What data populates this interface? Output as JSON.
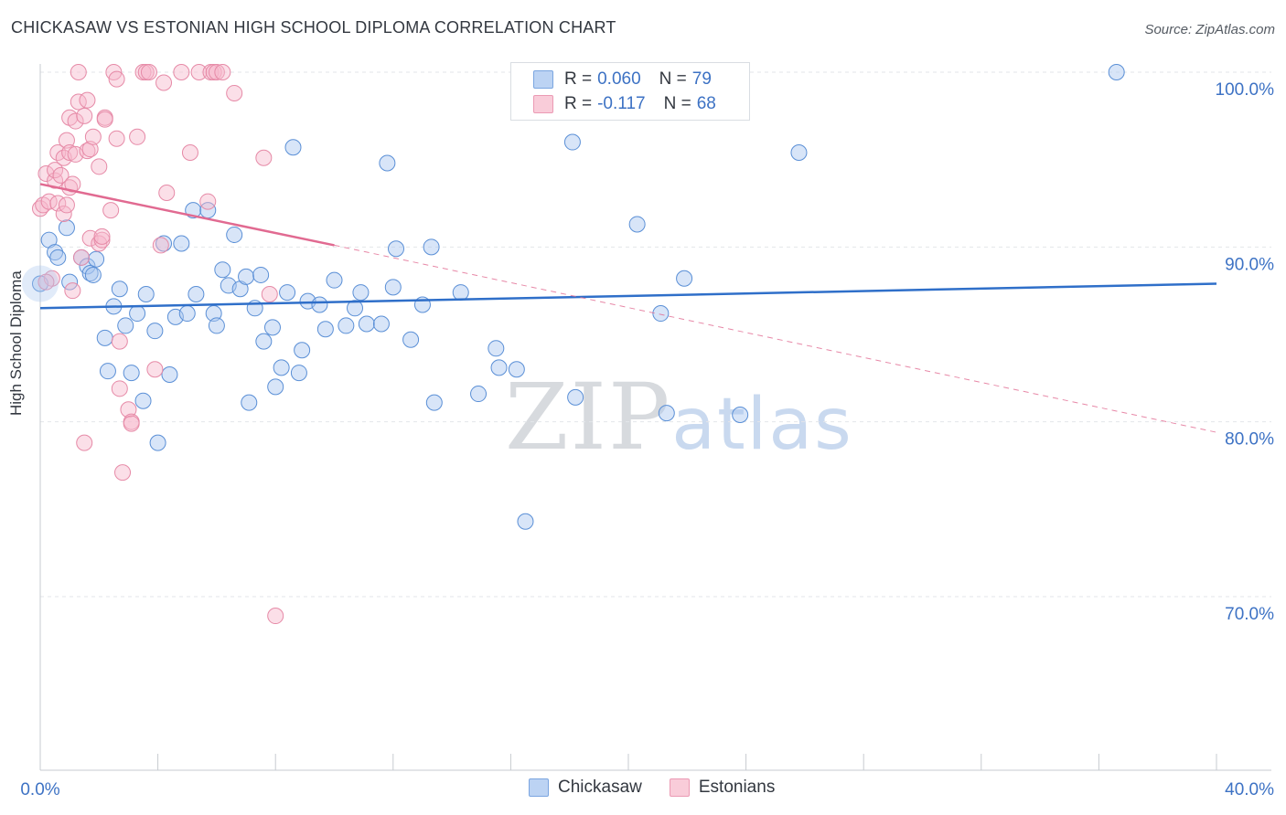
{
  "header": {
    "title": "CHICKASAW VS ESTONIAN HIGH SCHOOL DIPLOMA CORRELATION CHART",
    "source": "Source: ZipAtlas.com"
  },
  "watermark": {
    "zip": "ZIP",
    "atlas": "atlas"
  },
  "legend": {
    "rows": [
      {
        "r_label": "R =",
        "r_value": "0.060",
        "n_label": "N =",
        "n_value": "79",
        "color": "#a9c6ef"
      },
      {
        "r_label": "R =",
        "r_value": "-0.117",
        "n_label": "N =",
        "n_value": "68",
        "color": "#f6b8cb"
      }
    ]
  },
  "chart_data": {
    "type": "scatter",
    "title": "CHICKASAW VS ESTONIAN HIGH SCHOOL DIPLOMA CORRELATION CHART",
    "xlabel": "",
    "ylabel": "High School Diploma",
    "xlim": [
      0,
      40
    ],
    "ylim": [
      60.5,
      101.5
    ],
    "x_tick_labels": [
      {
        "value": 0,
        "label": "0.0%"
      },
      {
        "value": 40,
        "label": "40.0%"
      }
    ],
    "y_tick_labels": [
      {
        "value": 100,
        "label": "100.0%"
      },
      {
        "value": 90,
        "label": "90.0%"
      },
      {
        "value": 80,
        "label": "80.0%"
      },
      {
        "value": 70,
        "label": "70.0%"
      }
    ],
    "grid": true,
    "legend_position": "bottom-center",
    "series": [
      {
        "name": "Chickasaw",
        "color": "#a9c6ef",
        "stroke": "#5a8fd6",
        "trend": {
          "x": [
            0,
            40
          ],
          "y": [
            86.5,
            87.9
          ],
          "color": "#2f6fc9",
          "style": "solid"
        },
        "points": [
          [
            0.0,
            87.9
          ],
          [
            0.3,
            90.4
          ],
          [
            0.5,
            89.7
          ],
          [
            0.6,
            89.4
          ],
          [
            0.9,
            91.1
          ],
          [
            1.0,
            88.0
          ],
          [
            1.4,
            89.4
          ],
          [
            1.6,
            88.9
          ],
          [
            1.7,
            88.5
          ],
          [
            1.8,
            88.4
          ],
          [
            1.9,
            89.3
          ],
          [
            2.2,
            84.8
          ],
          [
            2.3,
            82.9
          ],
          [
            2.5,
            86.6
          ],
          [
            2.7,
            87.6
          ],
          [
            2.9,
            85.5
          ],
          [
            3.1,
            82.8
          ],
          [
            3.3,
            86.2
          ],
          [
            3.5,
            81.2
          ],
          [
            3.6,
            87.3
          ],
          [
            3.9,
            85.2
          ],
          [
            4.0,
            78.8
          ],
          [
            4.2,
            90.2
          ],
          [
            4.4,
            82.7
          ],
          [
            4.6,
            86.0
          ],
          [
            4.8,
            90.2
          ],
          [
            5.0,
            86.2
          ],
          [
            5.2,
            92.1
          ],
          [
            5.3,
            87.3
          ],
          [
            5.7,
            92.1
          ],
          [
            5.9,
            86.2
          ],
          [
            6.0,
            85.5
          ],
          [
            6.2,
            88.7
          ],
          [
            6.4,
            87.8
          ],
          [
            6.6,
            90.7
          ],
          [
            6.8,
            87.6
          ],
          [
            7.0,
            88.3
          ],
          [
            7.1,
            81.1
          ],
          [
            7.3,
            86.5
          ],
          [
            7.5,
            88.4
          ],
          [
            7.6,
            84.6
          ],
          [
            7.9,
            85.4
          ],
          [
            8.0,
            82.0
          ],
          [
            8.2,
            83.1
          ],
          [
            8.4,
            87.4
          ],
          [
            8.6,
            95.7
          ],
          [
            8.8,
            82.8
          ],
          [
            8.9,
            84.1
          ],
          [
            9.1,
            86.9
          ],
          [
            9.5,
            86.7
          ],
          [
            9.7,
            85.3
          ],
          [
            10.0,
            88.1
          ],
          [
            10.4,
            85.5
          ],
          [
            10.7,
            86.5
          ],
          [
            10.9,
            87.4
          ],
          [
            11.1,
            85.6
          ],
          [
            11.6,
            85.6
          ],
          [
            11.8,
            94.8
          ],
          [
            12.0,
            87.7
          ],
          [
            12.1,
            89.9
          ],
          [
            12.6,
            84.7
          ],
          [
            13.0,
            86.7
          ],
          [
            13.3,
            90.0
          ],
          [
            13.4,
            81.1
          ],
          [
            14.3,
            87.4
          ],
          [
            14.9,
            81.6
          ],
          [
            15.5,
            84.2
          ],
          [
            15.6,
            83.1
          ],
          [
            16.2,
            83.0
          ],
          [
            16.5,
            74.3
          ],
          [
            18.1,
            96.0
          ],
          [
            18.2,
            81.4
          ],
          [
            20.3,
            91.3
          ],
          [
            21.1,
            86.2
          ],
          [
            21.3,
            80.5
          ],
          [
            21.9,
            88.2
          ],
          [
            23.8,
            80.4
          ],
          [
            25.8,
            95.4
          ],
          [
            36.6,
            100.0
          ]
        ]
      },
      {
        "name": "Estonians",
        "color": "#f6b8cb",
        "stroke": "#e68aa7",
        "trend": {
          "x": [
            0,
            10
          ],
          "y": [
            93.6,
            90.1
          ],
          "color": "#e16a91",
          "style": "solid",
          "extension": {
            "x": [
              10,
              40
            ],
            "y": [
              90.1,
              79.4
            ],
            "style": "dashed"
          }
        },
        "points": [
          [
            0.0,
            92.2
          ],
          [
            0.1,
            92.4
          ],
          [
            0.2,
            94.2
          ],
          [
            0.3,
            92.6
          ],
          [
            0.4,
            88.2
          ],
          [
            0.5,
            93.8
          ],
          [
            0.5,
            94.4
          ],
          [
            0.6,
            92.5
          ],
          [
            0.6,
            95.4
          ],
          [
            0.7,
            94.1
          ],
          [
            0.8,
            91.9
          ],
          [
            0.8,
            95.1
          ],
          [
            0.9,
            96.1
          ],
          [
            0.9,
            92.4
          ],
          [
            1.0,
            95.4
          ],
          [
            1.0,
            93.4
          ],
          [
            1.0,
            97.4
          ],
          [
            1.1,
            93.6
          ],
          [
            1.1,
            87.5
          ],
          [
            1.2,
            95.3
          ],
          [
            1.2,
            97.2
          ],
          [
            1.3,
            100.0
          ],
          [
            1.3,
            98.3
          ],
          [
            1.4,
            89.4
          ],
          [
            1.5,
            97.5
          ],
          [
            1.5,
            78.8
          ],
          [
            1.6,
            98.4
          ],
          [
            1.6,
            95.5
          ],
          [
            1.7,
            90.5
          ],
          [
            1.7,
            95.6
          ],
          [
            1.8,
            96.3
          ],
          [
            2.0,
            90.2
          ],
          [
            2.0,
            94.6
          ],
          [
            2.1,
            90.4
          ],
          [
            2.1,
            90.6
          ],
          [
            2.2,
            97.4
          ],
          [
            2.2,
            97.3
          ],
          [
            2.4,
            92.1
          ],
          [
            2.5,
            100.0
          ],
          [
            2.6,
            99.6
          ],
          [
            2.6,
            96.2
          ],
          [
            2.7,
            84.6
          ],
          [
            2.7,
            81.9
          ],
          [
            2.8,
            77.1
          ],
          [
            3.0,
            80.7
          ],
          [
            3.1,
            80.0
          ],
          [
            3.1,
            79.9
          ],
          [
            3.3,
            96.3
          ],
          [
            3.5,
            100.0
          ],
          [
            3.6,
            100.0
          ],
          [
            3.7,
            100.0
          ],
          [
            3.9,
            83.0
          ],
          [
            4.1,
            90.1
          ],
          [
            4.2,
            99.4
          ],
          [
            4.3,
            93.1
          ],
          [
            4.8,
            100.0
          ],
          [
            5.1,
            95.4
          ],
          [
            5.4,
            100.0
          ],
          [
            5.7,
            92.6
          ],
          [
            5.8,
            100.0
          ],
          [
            5.9,
            100.0
          ],
          [
            6.0,
            100.0
          ],
          [
            6.2,
            100.0
          ],
          [
            6.6,
            98.8
          ],
          [
            7.6,
            95.1
          ],
          [
            7.8,
            87.3
          ],
          [
            8.0,
            68.9
          ],
          [
            0.2,
            88.0
          ]
        ]
      }
    ]
  }
}
